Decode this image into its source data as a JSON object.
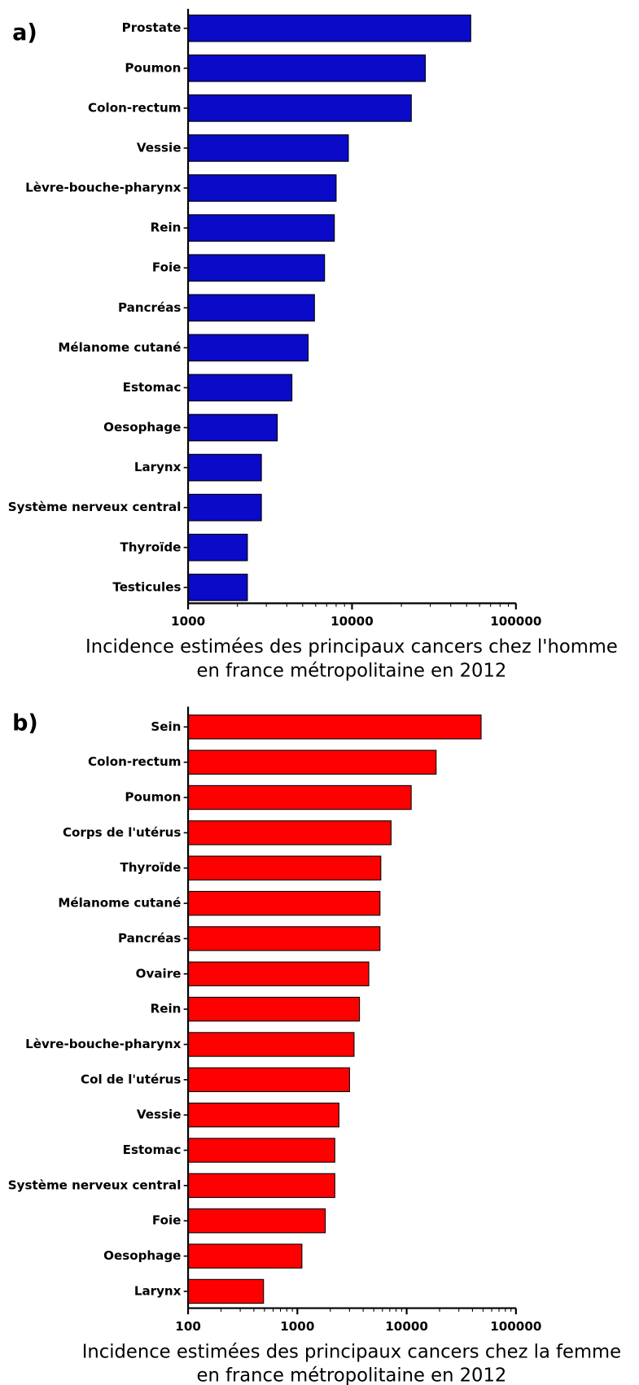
{
  "chart_data": [
    {
      "type": "bar",
      "orientation": "horizontal",
      "panel_label": "a)",
      "xlabel": [
        "Incidence estimées des principaux cancers chez l'homme",
        "en france métropolitaine en 2012"
      ],
      "categories": [
        "Prostate",
        "Poumon",
        "Colon-rectum",
        "Vessie",
        "Lèvre-bouche-pharynx",
        "Rein",
        "Foie",
        "Pancréas",
        "Mélanome cutané",
        "Estomac",
        "Oesophage",
        "Larynx",
        "Système nerveux central",
        "Thyroïde",
        "Testicules"
      ],
      "values": [
        53000,
        28000,
        23000,
        9500,
        8000,
        7800,
        6800,
        5900,
        5400,
        4300,
        3500,
        2800,
        2800,
        2300,
        2300
      ],
      "color": "#0a0ac8",
      "xscale": "log",
      "xlim": [
        1000,
        100000
      ],
      "xticks": [
        1000,
        10000,
        100000
      ]
    },
    {
      "type": "bar",
      "orientation": "horizontal",
      "panel_label": "b)",
      "xlabel": [
        "Incidence estimées des principaux cancers chez la femme",
        "en france métropolitaine en 2012"
      ],
      "categories": [
        "Sein",
        "Colon-rectum",
        "Poumon",
        "Corps de l'utérus",
        "Thyroïde",
        "Mélanome cutané",
        "Pancréas",
        "Ovaire",
        "Rein",
        "Lèvre-bouche-pharynx",
        "Col de l'utérus",
        "Vessie",
        "Estomac",
        "Système nerveux central",
        "Foie",
        "Oesophage",
        "Larynx"
      ],
      "values": [
        48000,
        18600,
        11000,
        7200,
        5800,
        5700,
        5700,
        4500,
        3700,
        3300,
        3000,
        2400,
        2200,
        2200,
        1800,
        1100,
        490
      ],
      "color": "#ff0000",
      "xscale": "log",
      "xlim": [
        100,
        100000
      ],
      "xticks": [
        100,
        1000,
        10000,
        100000
      ]
    }
  ]
}
